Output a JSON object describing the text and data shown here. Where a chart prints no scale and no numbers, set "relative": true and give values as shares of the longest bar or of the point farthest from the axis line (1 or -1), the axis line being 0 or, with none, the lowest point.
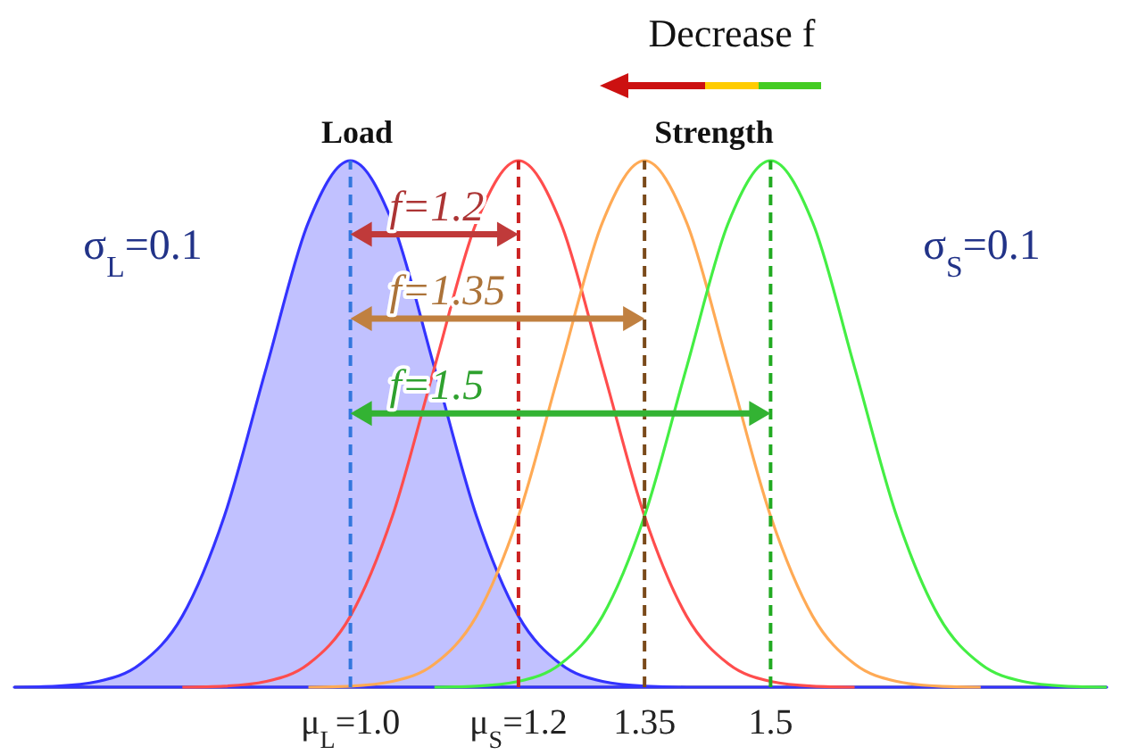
{
  "chart_data": {
    "type": "line",
    "title": "Decrease f",
    "relative": true,
    "x": [
      0.6,
      0.65,
      0.7,
      0.75,
      0.8,
      0.85,
      0.9,
      0.95,
      1.0,
      1.05,
      1.1,
      1.15,
      1.2,
      1.25,
      1.3,
      1.35,
      1.4,
      1.45,
      1.5,
      1.55,
      1.6,
      1.65,
      1.7,
      1.75,
      1.8,
      1.85,
      1.9
    ],
    "xlim": [
      0.6,
      1.9
    ],
    "xticks": [
      {
        "value": 1.0,
        "label": "μ$_{L}$=1.0"
      },
      {
        "value": 1.2,
        "label": "μ$_{S}$=1.2"
      },
      {
        "value": 1.35,
        "label": "1.35"
      },
      {
        "value": 1.5,
        "label": "1.5"
      }
    ],
    "series": [
      {
        "type": "area",
        "color": "#3333ff",
        "values": [
          0,
          0.002,
          0.011,
          0.044,
          0.135,
          0.325,
          0.607,
          0.883,
          1,
          0.883,
          0.607,
          0.325,
          0.135,
          0.044,
          0.011,
          0.002,
          0,
          0,
          0,
          0,
          0,
          0,
          0,
          0,
          0,
          0,
          0
        ]
      },
      {
        "color": "#ff4d4d",
        "values": [
          null,
          null,
          null,
          null,
          0,
          0.002,
          0.011,
          0.044,
          0.135,
          0.325,
          0.607,
          0.883,
          1,
          0.883,
          0.607,
          0.325,
          0.135,
          0.044,
          0.011,
          0.002,
          0,
          null,
          null,
          null,
          null,
          null,
          null
        ]
      },
      {
        "color": "#ffaa55",
        "values": [
          null,
          null,
          null,
          null,
          null,
          null,
          null,
          0,
          0.002,
          0.011,
          0.044,
          0.135,
          0.325,
          0.607,
          0.883,
          1,
          0.883,
          0.607,
          0.325,
          0.135,
          0.044,
          0.011,
          0.002,
          0,
          null,
          null,
          null
        ]
      },
      {
        "color": "#44ee44",
        "values": [
          null,
          null,
          null,
          null,
          null,
          null,
          null,
          null,
          null,
          null,
          0,
          0.002,
          0.011,
          0.044,
          0.135,
          0.325,
          0.607,
          0.883,
          1,
          0.883,
          0.607,
          0.325,
          0.135,
          0.044,
          0.011,
          0.002,
          0
        ]
      }
    ],
    "ref_lines": [
      {
        "axis": "x",
        "value": 1.0,
        "color": "#3377dd",
        "line_style": "dashed"
      },
      {
        "axis": "x",
        "value": 1.2,
        "color": "#cc2222",
        "line_style": "dashed"
      },
      {
        "axis": "x",
        "value": 1.35,
        "color": "#7a4a1a",
        "line_style": "dashed"
      },
      {
        "axis": "x",
        "value": 1.5,
        "color": "#22aa22",
        "line_style": "dashed"
      }
    ],
    "annotations": [
      "Load",
      "Strength",
      "σ$_{L}$=0.1",
      "σ$_{S}$=0.1",
      "f=1.2",
      "f=1.35",
      "f=1.5"
    ]
  }
}
